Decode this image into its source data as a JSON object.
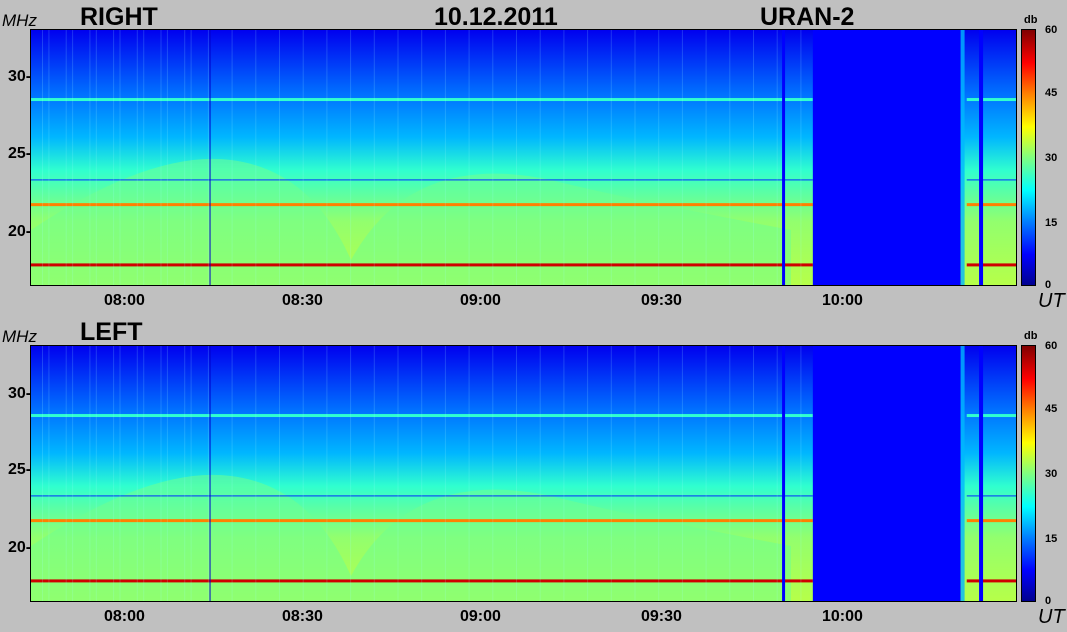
{
  "header": {
    "date": "10.12.2011",
    "instrument": "URAN-2"
  },
  "labels": {
    "y_unit": "MHz",
    "x_unit": "UT",
    "colorbar_unit": "db"
  },
  "colors": {
    "background": "#c0c0c0",
    "low": "#0000ff",
    "mid": "#00ffff",
    "high": "#ffff00",
    "max": "#800000"
  },
  "chart_data": [
    {
      "type": "heatmap",
      "title": "RIGHT",
      "ylabel": "MHz",
      "xlabel": "UT",
      "x_ticks": [
        "08:00",
        "08:30",
        "09:00",
        "09:30",
        "10:00"
      ],
      "y_ticks": [
        "30-",
        "25-",
        "20-"
      ],
      "colorbar": {
        "label": "db",
        "ticks": [
          "60",
          "45",
          "30",
          "15",
          "0"
        ],
        "range": [
          0,
          60
        ]
      },
      "xlim": [
        "07:45",
        "10:25"
      ],
      "ylim": [
        16.5,
        33
      ],
      "features": [
        {
          "kind": "steady_emission_line",
          "freq_mhz": 17.8,
          "level_db": 55
        },
        {
          "kind": "steady_emission_line",
          "freq_mhz": 28.5,
          "level_db": 25
        },
        {
          "kind": "steady_emission_line",
          "freq_mhz": 21.7,
          "level_db": 45
        },
        {
          "kind": "interference_line",
          "freq_mhz": 23.3,
          "level_db": 10
        },
        {
          "kind": "data_gap",
          "start": "09:52",
          "end": "10:16"
        }
      ]
    },
    {
      "type": "heatmap",
      "title": "LEFT",
      "ylabel": "MHz",
      "xlabel": "UT",
      "x_ticks": [
        "08:00",
        "08:30",
        "09:00",
        "09:30",
        "10:00"
      ],
      "y_ticks": [
        "30-",
        "25-",
        "20-"
      ],
      "colorbar": {
        "label": "db",
        "ticks": [
          "60",
          "45",
          "30",
          "15",
          "0"
        ],
        "range": [
          0,
          60
        ]
      },
      "xlim": [
        "07:45",
        "10:25"
      ],
      "ylim": [
        16.5,
        33
      ],
      "features": [
        {
          "kind": "steady_emission_line",
          "freq_mhz": 17.8,
          "level_db": 55
        },
        {
          "kind": "steady_emission_line",
          "freq_mhz": 28.5,
          "level_db": 25
        },
        {
          "kind": "steady_emission_line",
          "freq_mhz": 21.7,
          "level_db": 45
        },
        {
          "kind": "interference_line",
          "freq_mhz": 23.3,
          "level_db": 10
        },
        {
          "kind": "data_gap",
          "start": "09:52",
          "end": "10:16"
        }
      ]
    }
  ]
}
